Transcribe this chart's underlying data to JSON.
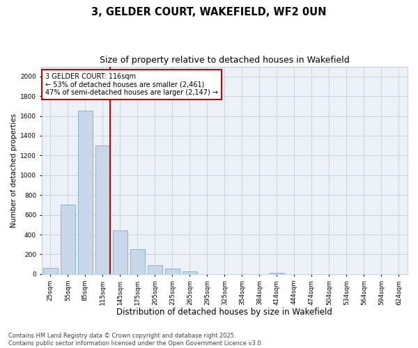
{
  "title": "3, GELDER COURT, WAKEFIELD, WF2 0UN",
  "subtitle": "Size of property relative to detached houses in Wakefield",
  "xlabel": "Distribution of detached houses by size in Wakefield",
  "ylabel": "Number of detached properties",
  "categories": [
    "25sqm",
    "55sqm",
    "85sqm",
    "115sqm",
    "145sqm",
    "175sqm",
    "205sqm",
    "235sqm",
    "265sqm",
    "295sqm",
    "325sqm",
    "354sqm",
    "384sqm",
    "414sqm",
    "444sqm",
    "474sqm",
    "504sqm",
    "534sqm",
    "564sqm",
    "594sqm",
    "624sqm"
  ],
  "values": [
    65,
    700,
    1650,
    1300,
    440,
    255,
    90,
    55,
    25,
    0,
    0,
    0,
    0,
    10,
    0,
    0,
    0,
    0,
    0,
    0,
    0
  ],
  "bar_color": "#c8d8ea",
  "bar_edge_color": "#7aaac8",
  "bar_linewidth": 0.6,
  "marker_line_index": 3,
  "marker_line_color": "#cc0000",
  "ylim": [
    0,
    2100
  ],
  "yticks": [
    0,
    200,
    400,
    600,
    800,
    1000,
    1200,
    1400,
    1600,
    1800,
    2000
  ],
  "annotation_title": "3 GELDER COURT: 116sqm",
  "annotation_line1": "← 53% of detached houses are smaller (2,461)",
  "annotation_line2": "47% of semi-detached houses are larger (2,147) →",
  "annotation_box_facecolor": "#ffffff",
  "annotation_box_edgecolor": "#cc0000",
  "footer1": "Contains HM Land Registry data © Crown copyright and database right 2025.",
  "footer2": "Contains public sector information licensed under the Open Government Licence v3.0.",
  "grid_color": "#c8d4e0",
  "background_color": "#ffffff",
  "plot_bg_color": "#edf2f8",
  "title_fontsize": 10.5,
  "subtitle_fontsize": 9,
  "xlabel_fontsize": 8.5,
  "ylabel_fontsize": 7.5,
  "tick_fontsize": 6.5,
  "annotation_fontsize": 7,
  "footer_fontsize": 6
}
